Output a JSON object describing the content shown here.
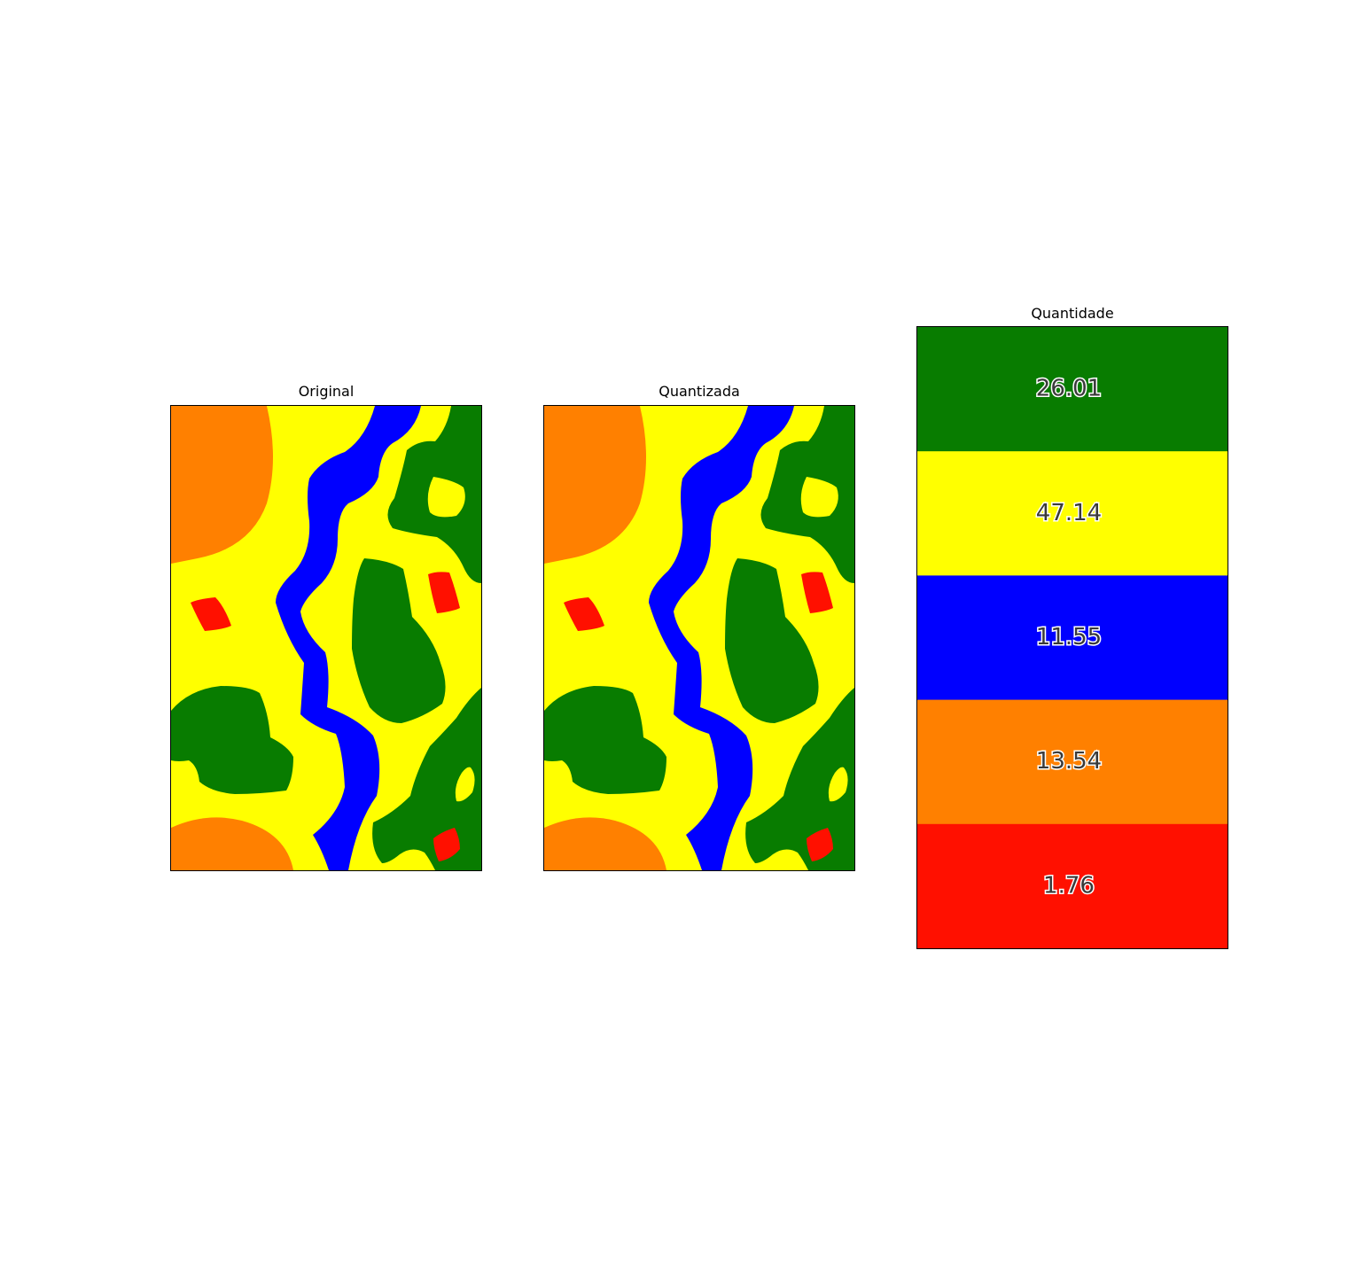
{
  "panels": {
    "original": {
      "title": "Original"
    },
    "quantized": {
      "title": "Quantizada"
    },
    "quantity": {
      "title": "Quantidade"
    }
  },
  "colors": {
    "green": "#087c00",
    "yellow": "#ffff00",
    "blue": "#0000ff",
    "orange": "#ff8000",
    "red": "#ff1000"
  },
  "chart_data": {
    "type": "bar",
    "title": "Quantidade",
    "categories": [
      "green",
      "yellow",
      "blue",
      "orange",
      "red"
    ],
    "values": [
      26.01,
      47.14,
      11.55,
      13.54,
      1.76
    ],
    "labels": [
      "26.01",
      "47.14",
      "11.55",
      "13.54",
      "1.76"
    ]
  }
}
